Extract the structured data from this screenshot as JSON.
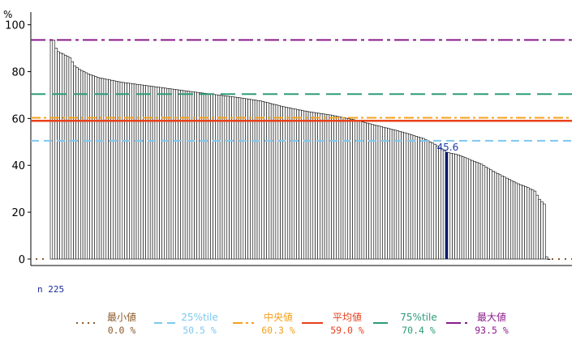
{
  "chart_data": {
    "type": "bar",
    "ylabel": "%",
    "ylim": [
      0,
      100
    ],
    "yticks": [
      0,
      20,
      40,
      60,
      80,
      100
    ],
    "grid": false,
    "n_label": "n",
    "n": "225",
    "highlight": {
      "index": 170,
      "value": 45.6,
      "label": "45.6"
    },
    "profile": [
      [
        0,
        93.5
      ],
      [
        1,
        93.5
      ],
      [
        2,
        90.0
      ],
      [
        3,
        88.5
      ],
      [
        5,
        87.5
      ],
      [
        8,
        86.0
      ],
      [
        10,
        82.5
      ],
      [
        12,
        81.0
      ],
      [
        16,
        79.0
      ],
      [
        20,
        77.5
      ],
      [
        30,
        75.5
      ],
      [
        45,
        73.5
      ],
      [
        60,
        71.5
      ],
      [
        80,
        69.0
      ],
      [
        90,
        67.5
      ],
      [
        100,
        65.0
      ],
      [
        110,
        63.0
      ],
      [
        120,
        61.5
      ],
      [
        130,
        59.5
      ],
      [
        140,
        57.0
      ],
      [
        150,
        54.5
      ],
      [
        160,
        51.5
      ],
      [
        165,
        49.0
      ],
      [
        170,
        45.6
      ],
      [
        175,
        44.5
      ],
      [
        180,
        42.5
      ],
      [
        185,
        40.5
      ],
      [
        190,
        37.5
      ],
      [
        195,
        35.0
      ],
      [
        200,
        32.5
      ],
      [
        205,
        30.5
      ],
      [
        208,
        29.0
      ],
      [
        210,
        25.5
      ],
      [
        212,
        23.5
      ],
      [
        213,
        1.0
      ],
      [
        214,
        0.0
      ]
    ],
    "bar_count": 215,
    "reference_lines": [
      {
        "key": "min",
        "name": "最小値",
        "value": 0.0,
        "value_label": "0.0 %",
        "color": "#8b5a2b",
        "style": "dotted"
      },
      {
        "key": "p25",
        "name": "25%tile",
        "value": 50.5,
        "value_label": "50.5 %",
        "color": "#7ec8f0",
        "style": "dashed"
      },
      {
        "key": "median",
        "name": "中央値",
        "value": 60.3,
        "value_label": "60.3 %",
        "color": "#f5a01a",
        "style": "dashdot"
      },
      {
        "key": "mean",
        "name": "平均値",
        "value": 59.0,
        "value_label": "59.0 %",
        "color": "#e8401c",
        "style": "solid"
      },
      {
        "key": "p75",
        "name": "75%tile",
        "value": 70.4,
        "value_label": "70.4 %",
        "color": "#2e9a7a",
        "style": "longdash"
      },
      {
        "key": "max",
        "name": "最大値",
        "value": 93.5,
        "value_label": "93.5 %",
        "color": "#8b1a8b",
        "style": "longdashdot"
      }
    ],
    "bar_fill": "#ffffff",
    "bar_stroke": "#000000",
    "highlight_color": "#0a1a6e"
  }
}
